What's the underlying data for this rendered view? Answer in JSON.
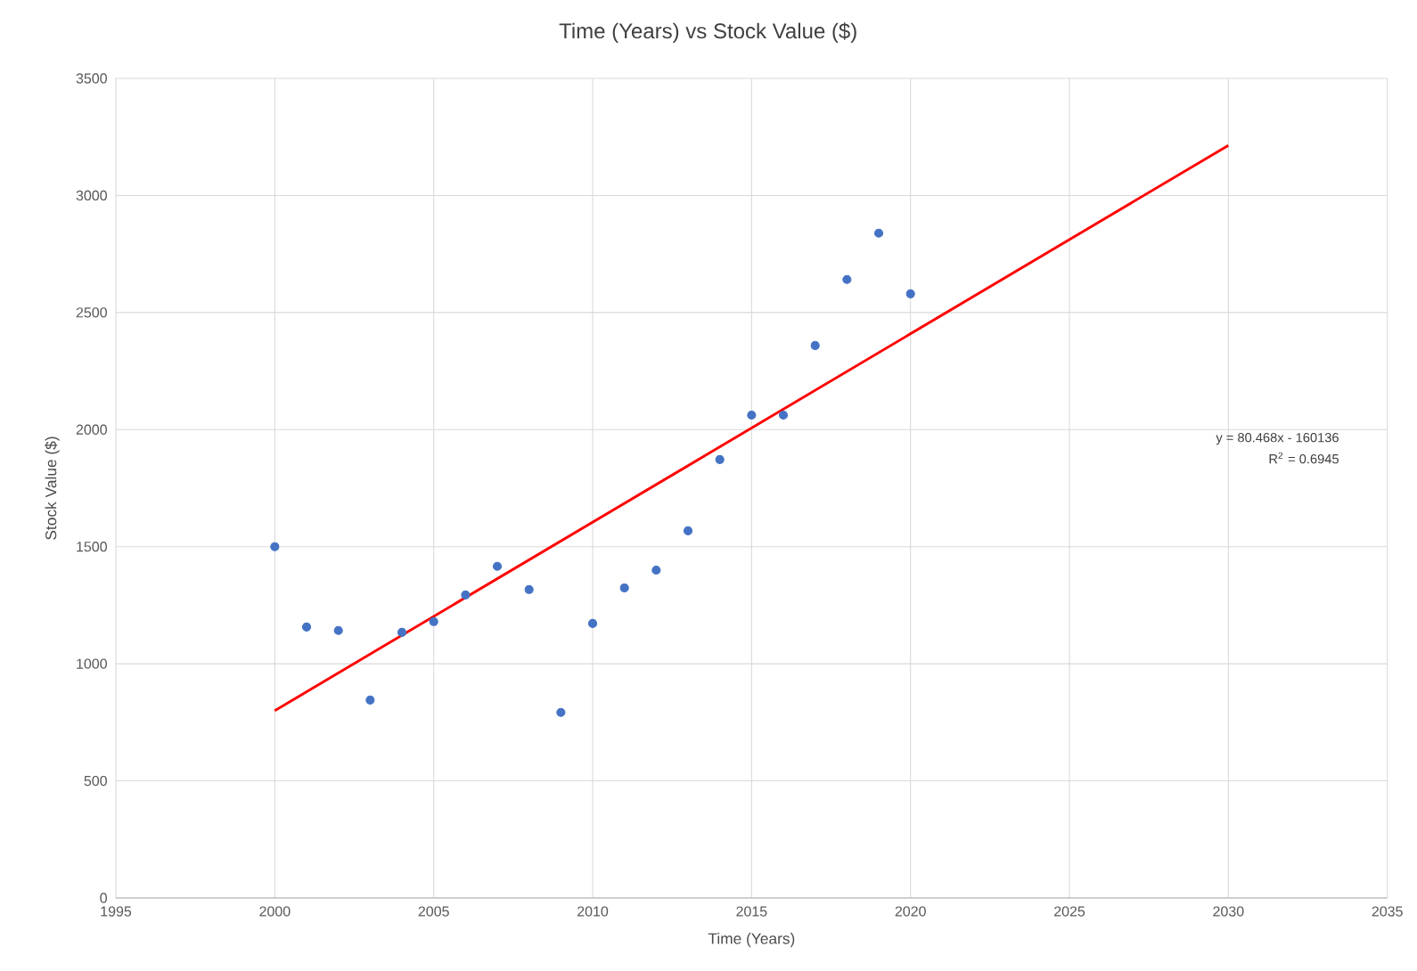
{
  "chart_data": {
    "type": "scatter",
    "title": "Time (Years) vs Stock Value ($)",
    "xlabel": "Time (Years)",
    "ylabel": "Stock Value ($)",
    "xlim": [
      1995,
      2035
    ],
    "xticks": [
      1995,
      2000,
      2005,
      2010,
      2015,
      2020,
      2025,
      2030,
      2035
    ],
    "ylim": [
      0,
      3500
    ],
    "yticks": [
      0,
      500,
      1000,
      1500,
      2000,
      2500,
      3000,
      3500
    ],
    "grid": true,
    "marker": "circle",
    "annotations": [
      "y = 80.468x - 160136",
      "R$^{2}$ = 0.6945"
    ],
    "series": [
      {
        "color": "#4472c4",
        "x": [
          2000,
          2001,
          2002,
          2003,
          2004,
          2005,
          2006,
          2007,
          2008,
          2009,
          2010,
          2011,
          2012,
          2013,
          2014,
          2015,
          2016,
          2017,
          2018,
          2019,
          2020
        ],
        "values": [
          1500,
          1157,
          1142,
          845,
          1134,
          1180,
          1294,
          1416,
          1317,
          792,
          1172,
          1324,
          1400,
          1568,
          1872,
          2062,
          2062,
          2359,
          2641,
          2839,
          2580
        ]
      },
      {
        "type": "line",
        "color": "#ff0000",
        "line_style": "solid",
        "marker": "none",
        "x": [
          2000,
          2030
        ],
        "values": [
          800,
          3214
        ]
      }
    ]
  }
}
